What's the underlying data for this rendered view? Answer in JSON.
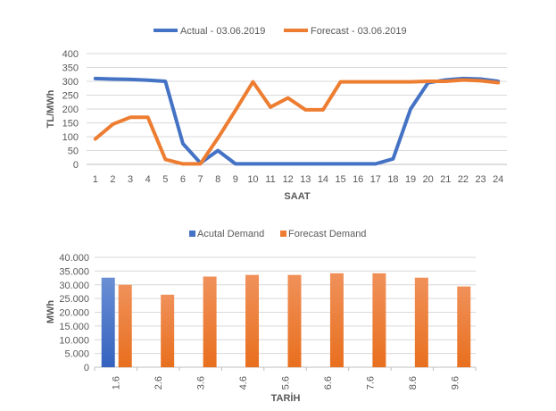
{
  "chart_data": [
    {
      "type": "line",
      "title": "",
      "xlabel": "SAAT",
      "ylabel": "TL/MWh",
      "ylim": [
        0,
        400
      ],
      "yticks": [
        "0",
        "50",
        "100",
        "150",
        "200",
        "250",
        "300",
        "350",
        "400"
      ],
      "x": [
        "1",
        "2",
        "3",
        "4",
        "5",
        "6",
        "7",
        "8",
        "9",
        "10",
        "11",
        "12",
        "13",
        "14",
        "15",
        "16",
        "17",
        "18",
        "19",
        "20",
        "21",
        "22",
        "23",
        "24"
      ],
      "grid": true,
      "legend": "top",
      "series": [
        {
          "name": "Actual - 03.06.2019",
          "color": "#4472C4",
          "values": [
            310,
            308,
            307,
            304,
            300,
            75,
            5,
            50,
            2,
            2,
            2,
            2,
            2,
            2,
            2,
            2,
            2,
            20,
            200,
            295,
            305,
            310,
            308,
            300
          ]
        },
        {
          "name": "Forecast - 03.06.2019",
          "color": "#ED7D31",
          "values": [
            92,
            145,
            170,
            170,
            18,
            2,
            2,
            95,
            195,
            298,
            207,
            240,
            197,
            197,
            298,
            298,
            298,
            298,
            298,
            300,
            300,
            305,
            302,
            295
          ]
        }
      ]
    },
    {
      "type": "bar",
      "title": "",
      "xlabel": "TARİH",
      "ylabel": "MWh",
      "ylim": [
        0,
        40000
      ],
      "yticks": [
        "0",
        "5.000",
        "10.000",
        "15.000",
        "20.000",
        "25.000",
        "30.000",
        "35.000",
        "40.000"
      ],
      "categories": [
        "1.6",
        "2.6",
        "3.6",
        "4.6",
        "5.6",
        "6.6",
        "7.6",
        "8.6",
        "9.6"
      ],
      "grid": true,
      "legend": "top",
      "series": [
        {
          "name": "Acutal Demand",
          "color": "#4472C4",
          "values": [
            32600,
            null,
            null,
            null,
            null,
            null,
            null,
            null,
            null
          ]
        },
        {
          "name": "Forecast Demand",
          "color": "#ED7D31",
          "values": [
            30000,
            26400,
            33000,
            33600,
            33600,
            34200,
            34200,
            32600,
            29400
          ]
        }
      ]
    }
  ]
}
